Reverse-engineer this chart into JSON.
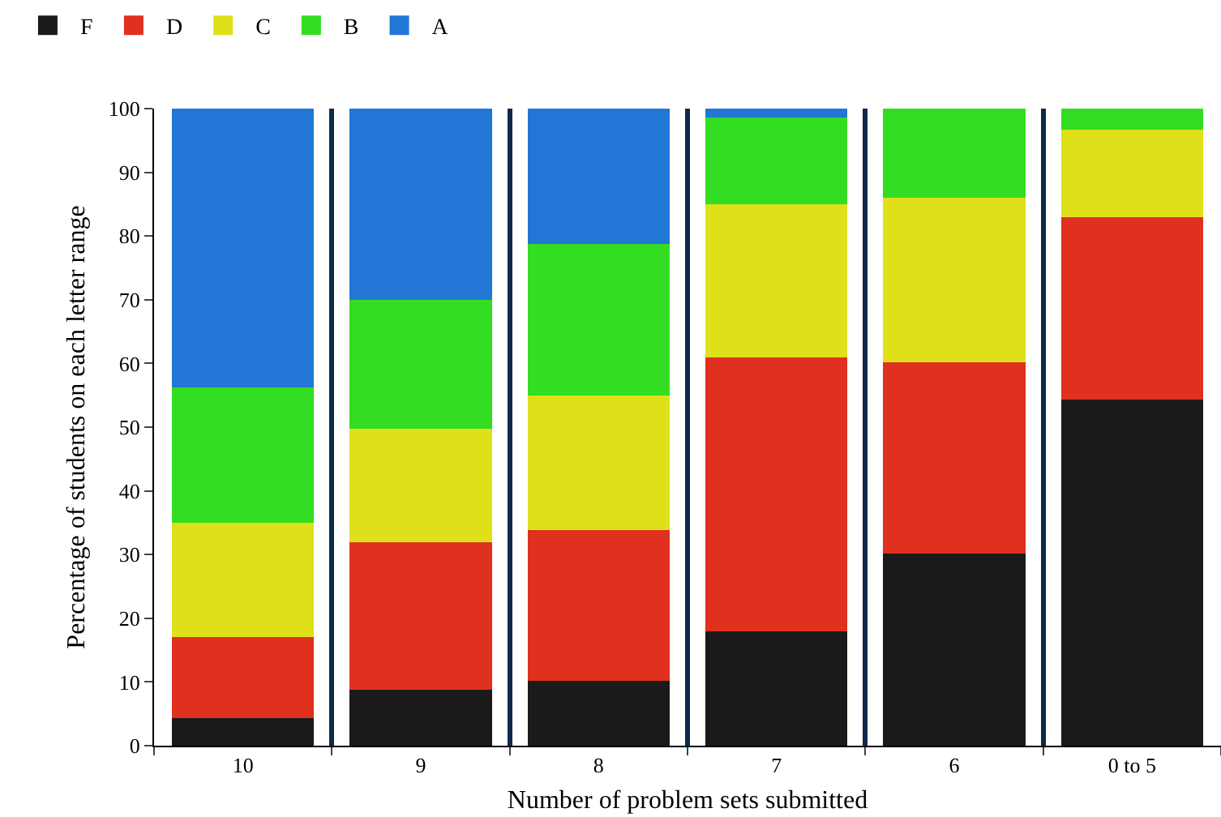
{
  "chart_data": {
    "type": "bar",
    "stacked": true,
    "xlabel": "Number of problem sets submitted",
    "ylabel": "Percentage of students on each letter range",
    "categories": [
      "10",
      "9",
      "8",
      "7",
      "6",
      "0 to 5"
    ],
    "series": [
      {
        "name": "F",
        "color": "#1a1a1a",
        "values": [
          4.3,
          8.8,
          10.2,
          17.9,
          30.2,
          54.3
        ]
      },
      {
        "name": "D",
        "color": "#e0301e",
        "values": [
          12.8,
          23.1,
          23.6,
          43.1,
          30,
          28.6
        ]
      },
      {
        "name": "C",
        "color": "#dfe01a",
        "values": [
          17.9,
          17.9,
          21.2,
          24,
          25.8,
          13.8
        ]
      },
      {
        "name": "B",
        "color": "#33dd22",
        "values": [
          21.2,
          20.2,
          23.8,
          13.6,
          14,
          3.3
        ]
      },
      {
        "name": "A",
        "color": "#2277d6",
        "values": [
          43.8,
          30,
          21.2,
          1.4,
          0,
          0
        ]
      }
    ],
    "ylim": [
      0,
      100
    ],
    "yticks": [
      0,
      10,
      20,
      30,
      40,
      50,
      60,
      70,
      80,
      90,
      100
    ],
    "grid": "x",
    "legend": "top left"
  }
}
